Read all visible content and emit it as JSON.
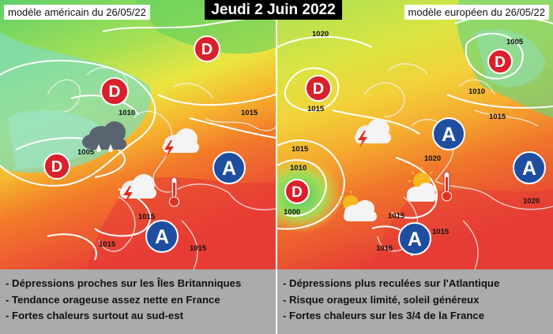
{
  "title": "Jeudi 2 Juin 2022",
  "colors": {
    "low_pressure": "#d9202b",
    "high_pressure": "#1f4ea0",
    "isobar": "#ffffff",
    "caption_bg": "#ababab"
  },
  "left": {
    "model_label": "modèle américain du 26/05/22",
    "pressure_labels": [
      "1010",
      "1005",
      "1015",
      "1015",
      "1015",
      "1015"
    ],
    "systems": [
      {
        "type": "low",
        "letter": "D"
      },
      {
        "type": "low",
        "letter": "D"
      },
      {
        "type": "low",
        "letter": "D"
      },
      {
        "type": "high",
        "letter": "A"
      },
      {
        "type": "high",
        "letter": "A"
      }
    ],
    "weather_icons": [
      "rain-cloud",
      "storm-cloud",
      "storm-cloud",
      "thermometer-hot"
    ],
    "caption": [
      "- Dépressions proches sur les Îles Britanniques",
      "- Tendance orageuse assez nette en France",
      "- Fortes chaleurs surtout au sud-est"
    ]
  },
  "right": {
    "model_label": "modèle européen du 26/05/22",
    "pressure_labels": [
      "1020",
      "1005",
      "1015",
      "1010",
      "1015",
      "1015",
      "1010",
      "1000",
      "1020",
      "1015",
      "1015",
      "1015",
      "1020"
    ],
    "systems": [
      {
        "type": "low",
        "letter": "D"
      },
      {
        "type": "low",
        "letter": "D"
      },
      {
        "type": "low",
        "letter": "D"
      },
      {
        "type": "high",
        "letter": "A"
      },
      {
        "type": "high",
        "letter": "A"
      },
      {
        "type": "high",
        "letter": "A"
      }
    ],
    "weather_icons": [
      "storm-cloud",
      "sun-cloud",
      "sun-cloud",
      "thermometer-hot"
    ],
    "caption": [
      "- Dépressions plus reculées sur l'Atlantique",
      "- Risque orageux limité, soleil généreux",
      "- Fortes chaleurs sur les 3/4 de la France"
    ]
  }
}
